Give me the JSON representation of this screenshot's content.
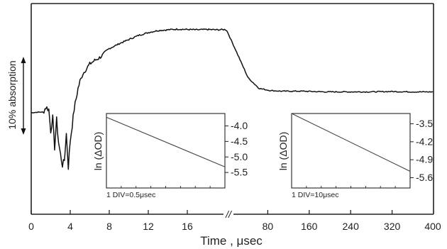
{
  "chart_data": [
    {
      "type": "line",
      "xlabel": "Time , μsec",
      "x_ticks_left": [
        "0",
        "4",
        "8",
        "12",
        "16"
      ],
      "x_ticks_right": [
        "80",
        "160",
        "240",
        "320",
        "400"
      ],
      "axis_break_mark": "//",
      "scale_bar_label": "10% absorption",
      "grid": false,
      "series": [
        {
          "x": [
            0.0,
            0.8,
            1.2,
            1.5,
            1.8,
            2.0,
            2.2,
            2.4,
            2.6,
            2.8,
            3.0,
            3.2,
            3.4,
            3.6,
            3.8,
            4.0,
            4.2,
            4.4,
            4.6,
            4.8,
            5.0,
            5.3,
            5.6,
            6.0,
            6.5,
            7.0,
            7.5,
            8.0,
            9.0,
            10.0,
            11.0,
            12.0,
            13.0,
            14.0,
            15.0,
            16.0,
            17.0,
            18.0,
            19.0,
            20.0,
            40,
            60,
            80,
            100,
            120,
            160,
            200,
            240,
            280,
            320,
            360,
            400
          ],
          "y": [
            0.0,
            0.1,
            0.1,
            0.8,
            0.5,
            -2.6,
            -0.7,
            -5.0,
            -1.0,
            -4.2,
            -6.0,
            -7.5,
            -6.8,
            -3.0,
            -7.8,
            -4.0,
            -1.8,
            0.5,
            2.0,
            3.5,
            4.5,
            5.6,
            6.2,
            7.0,
            7.5,
            7.9,
            8.5,
            9.2,
            9.9,
            10.5,
            11.1,
            11.5,
            11.8,
            11.9,
            12.0,
            11.95,
            11.9,
            11.95,
            11.9,
            11.95,
            8.5,
            5.0,
            3.5,
            3.2,
            3.1,
            3.1,
            3.0,
            3.0,
            3.0,
            3.05,
            3.0,
            3.0
          ]
        }
      ]
    },
    {
      "type": "line",
      "title": "",
      "xlabel": "1 DIV=0.5μsec",
      "ylabel": "ln (ΔOD)",
      "yticks": [
        "4.0",
        "4.5",
        "5.0",
        "5.5"
      ],
      "ylim": [
        -6.0,
        -3.6
      ],
      "series": [
        {
          "x": [
            0,
            8
          ],
          "y": [
            -3.72,
            -5.32
          ]
        }
      ]
    },
    {
      "type": "line",
      "title": "",
      "xlabel": "1 DIV=10μsec",
      "ylabel": "ln (ΔOD)",
      "yticks": [
        "3.5",
        "4.2",
        "4.9",
        "5.6"
      ],
      "ylim": [
        -6.0,
        -3.1
      ],
      "series": [
        {
          "x": [
            0,
            8
          ],
          "y": [
            -3.1,
            -5.35
          ]
        }
      ]
    }
  ]
}
